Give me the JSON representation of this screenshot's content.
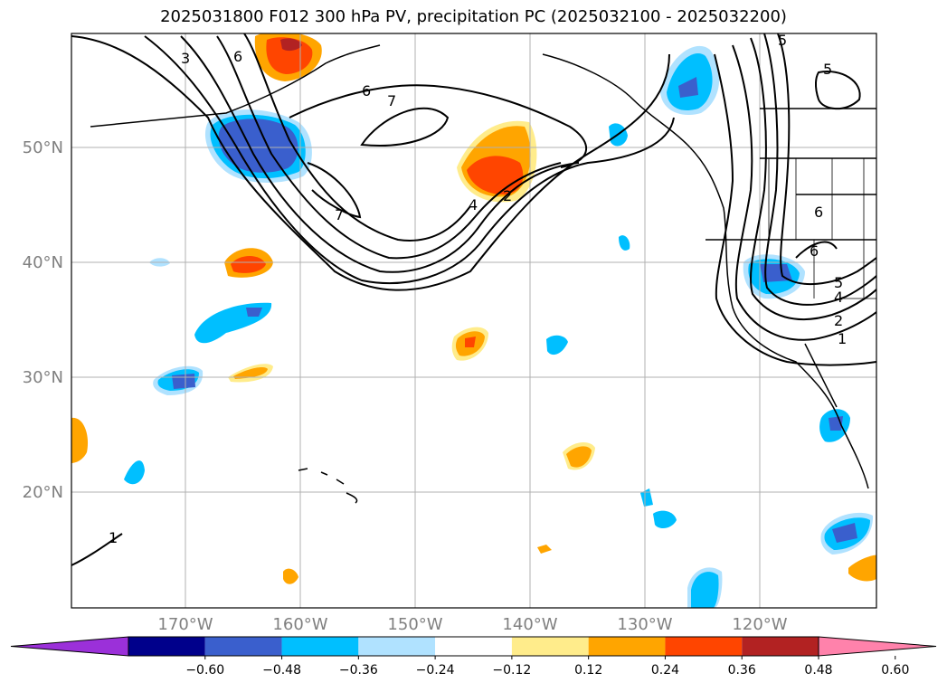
{
  "title": "2025031800 F012 300 hPa PV, precipitation PC (2025032100 - 2025032200)",
  "lat_labels": [
    "50°N",
    "40°N",
    "30°N",
    "20°N"
  ],
  "lon_labels": [
    "170°W",
    "160°W",
    "150°W",
    "140°W",
    "130°W",
    "120°W"
  ],
  "colorbar": {
    "ticks": [
      "−0.60",
      "−0.48",
      "−0.36",
      "−0.24",
      "−0.12",
      "0.12",
      "0.24",
      "0.36",
      "0.48",
      "0.60"
    ],
    "colors": [
      "#9b30d9",
      "#00008b",
      "#3a5fcd",
      "#00bfff",
      "#b0e2ff",
      "#ffffff",
      "#ffec8b",
      "#ffa500",
      "#ff4500",
      "#b22222",
      "#ff82ab"
    ]
  },
  "contour_labels": [
    "3",
    "6",
    "6",
    "7",
    "7",
    "4",
    "2",
    "5",
    "5",
    "6",
    "6",
    "5",
    "4",
    "2",
    "1",
    "1"
  ]
}
